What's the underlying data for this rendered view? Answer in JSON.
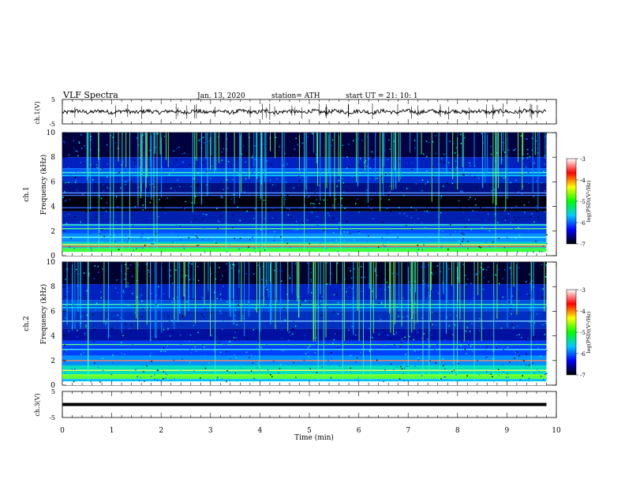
{
  "header": {
    "title": "VLF  Spectra",
    "date": "Jan.  13,  2020",
    "station": "station= ATH",
    "start": "start  UT  =    21: 10: 1"
  },
  "colorbar": {
    "label": "log(PSD)(V²/Hz)",
    "ticks": [
      "-3",
      "-4",
      "-5",
      "-6",
      "-7"
    ],
    "stops": [
      "#ffffff",
      "#ff0000",
      "#ffff00",
      "#00ff00",
      "#00c8ff",
      "#0000ff",
      "#000000"
    ]
  },
  "chart_data": [
    {
      "name": "ch.1 waveform",
      "type": "line",
      "ylabel": "ch.1(V)",
      "yticks": [
        "5",
        "-5"
      ],
      "ylim": [
        -5,
        5
      ],
      "baseline_v": 0,
      "x_range_min": [
        0,
        9.8
      ]
    },
    {
      "name": "ch.1 spectrogram",
      "type": "heatmap",
      "ylabel_top": "ch.1",
      "ylabel": "Frequency  (kHz)",
      "yticks": [
        "0",
        "2",
        "4",
        "6",
        "8",
        "10"
      ],
      "ylim_khz": [
        0,
        10
      ],
      "xlim_min": [
        0,
        10
      ],
      "value_range_logpsd": [
        -7,
        -3
      ]
    },
    {
      "name": "ch.2 spectrogram",
      "type": "heatmap",
      "ylabel_top": "ch.2",
      "ylabel": "Frequency  (kHz)",
      "yticks": [
        "0",
        "2",
        "4",
        "6",
        "8",
        "10"
      ],
      "ylim_khz": [
        0,
        10
      ],
      "xlim_min": [
        0,
        10
      ],
      "value_range_logpsd": [
        -7,
        -3
      ]
    },
    {
      "name": "ch.3 waveform",
      "type": "line",
      "ylabel": "ch.3(V)",
      "yticks": [
        "5",
        "-5"
      ],
      "ylim": [
        -5,
        5
      ],
      "level_v": 0,
      "x_range_min": [
        0,
        9.8
      ]
    }
  ],
  "x_axis": {
    "label": "Time  (min)",
    "ticks": [
      "0",
      "1",
      "2",
      "3",
      "4",
      "5",
      "6",
      "7",
      "8",
      "9",
      "10"
    ],
    "range": [
      0,
      10
    ]
  }
}
